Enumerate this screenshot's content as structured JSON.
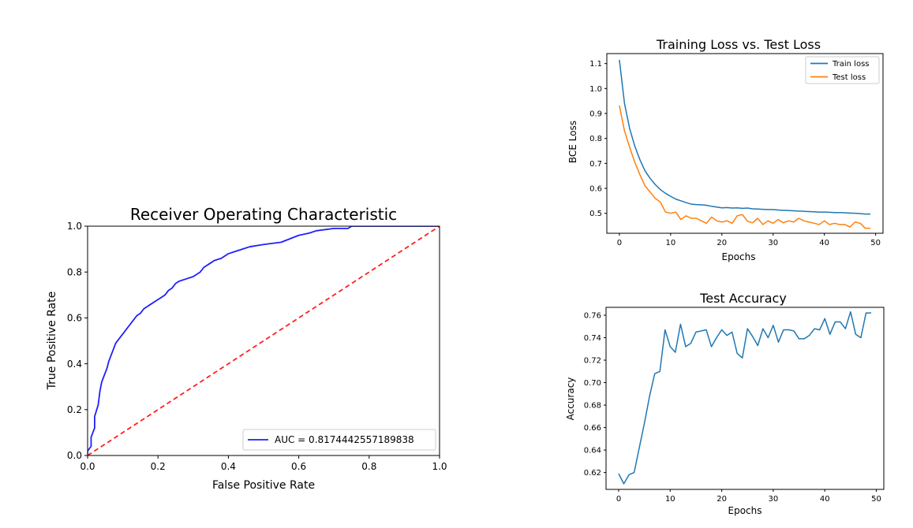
{
  "chart_data": [
    {
      "type": "line",
      "title": "Receiver Operating Characteristic",
      "xlabel": "False Positive Rate",
      "ylabel": "True Positive Rate",
      "xlim": [
        0,
        1
      ],
      "ylim": [
        0,
        1
      ],
      "xticks": [
        "0.0",
        "0.2",
        "0.4",
        "0.6",
        "0.8",
        "1.0"
      ],
      "yticks": [
        "0.0",
        "0.2",
        "0.4",
        "0.6",
        "0.8",
        "1.0"
      ],
      "grid": false,
      "legend_position": "lower-right",
      "series": [
        {
          "name": "AUC = 0.8174442557189838",
          "color": "#1f1fff",
          "style": "solid",
          "x": [
            0.0,
            0.0,
            0.01,
            0.01,
            0.02,
            0.02,
            0.03,
            0.035,
            0.04,
            0.05,
            0.055,
            0.06,
            0.07,
            0.08,
            0.09,
            0.1,
            0.11,
            0.12,
            0.13,
            0.14,
            0.15,
            0.16,
            0.17,
            0.18,
            0.19,
            0.2,
            0.21,
            0.22,
            0.23,
            0.24,
            0.25,
            0.26,
            0.28,
            0.3,
            0.32,
            0.33,
            0.35,
            0.36,
            0.38,
            0.4,
            0.42,
            0.44,
            0.46,
            0.5,
            0.55,
            0.6,
            0.63,
            0.65,
            0.7,
            0.74,
            0.75,
            0.8,
            0.9,
            1.0
          ],
          "y": [
            0.0,
            0.02,
            0.04,
            0.08,
            0.12,
            0.17,
            0.22,
            0.28,
            0.32,
            0.36,
            0.38,
            0.41,
            0.45,
            0.49,
            0.51,
            0.53,
            0.55,
            0.57,
            0.59,
            0.61,
            0.62,
            0.64,
            0.65,
            0.66,
            0.67,
            0.68,
            0.69,
            0.7,
            0.72,
            0.73,
            0.75,
            0.76,
            0.77,
            0.78,
            0.8,
            0.82,
            0.84,
            0.85,
            0.86,
            0.88,
            0.89,
            0.9,
            0.91,
            0.92,
            0.93,
            0.96,
            0.97,
            0.98,
            0.99,
            0.99,
            1.0,
            1.0,
            1.0,
            1.0
          ]
        },
        {
          "name": "",
          "color": "#ff2020",
          "style": "dashed",
          "x": [
            0,
            1
          ],
          "y": [
            0,
            1
          ]
        }
      ]
    },
    {
      "type": "line",
      "title": "Training Loss vs. Test Loss",
      "xlabel": "Epochs",
      "ylabel": "BCE Loss",
      "xlim": [
        -2.45,
        51.45
      ],
      "ylim": [
        0.42,
        1.14
      ],
      "xticks": [
        "0",
        "10",
        "20",
        "30",
        "40",
        "50"
      ],
      "yticks": [
        "0.5",
        "0.6",
        "0.7",
        "0.8",
        "0.9",
        "1.0",
        "1.1"
      ],
      "grid": false,
      "legend_position": "top-right",
      "series": [
        {
          "name": "Train loss",
          "color": "#1f77b4",
          "values": [
            1.115,
            0.94,
            0.84,
            0.77,
            0.715,
            0.67,
            0.64,
            0.615,
            0.595,
            0.58,
            0.568,
            0.557,
            0.55,
            0.543,
            0.537,
            0.535,
            0.534,
            0.532,
            0.528,
            0.525,
            0.522,
            0.523,
            0.521,
            0.522,
            0.52,
            0.521,
            0.518,
            0.517,
            0.516,
            0.515,
            0.515,
            0.513,
            0.512,
            0.511,
            0.51,
            0.509,
            0.508,
            0.507,
            0.506,
            0.505,
            0.505,
            0.504,
            0.503,
            0.503,
            0.502,
            0.501,
            0.5,
            0.499,
            0.497,
            0.497
          ]
        },
        {
          "name": "Test loss",
          "color": "#ff7f0e",
          "values": [
            0.932,
            0.83,
            0.765,
            0.705,
            0.655,
            0.61,
            0.585,
            0.56,
            0.545,
            0.505,
            0.5,
            0.505,
            0.475,
            0.49,
            0.48,
            0.48,
            0.47,
            0.46,
            0.485,
            0.47,
            0.465,
            0.47,
            0.46,
            0.49,
            0.495,
            0.468,
            0.462,
            0.48,
            0.455,
            0.47,
            0.46,
            0.475,
            0.462,
            0.47,
            0.465,
            0.48,
            0.47,
            0.465,
            0.46,
            0.455,
            0.47,
            0.455,
            0.46,
            0.455,
            0.455,
            0.445,
            0.465,
            0.46,
            0.44,
            0.44
          ]
        }
      ]
    },
    {
      "type": "line",
      "title": "Test Accuracy",
      "xlabel": "Epochs",
      "ylabel": "Accuracy",
      "xlim": [
        -2.45,
        51.45
      ],
      "ylim": [
        0.605,
        0.767
      ],
      "xticks": [
        "0",
        "10",
        "20",
        "30",
        "40",
        "50"
      ],
      "yticks": [
        "0.62",
        "0.64",
        "0.66",
        "0.68",
        "0.70",
        "0.72",
        "0.74",
        "0.76"
      ],
      "grid": false,
      "legend_position": "none",
      "series": [
        {
          "name": "",
          "color": "#1f77b4",
          "values": [
            0.619,
            0.61,
            0.618,
            0.62,
            0.642,
            0.664,
            0.688,
            0.708,
            0.71,
            0.747,
            0.732,
            0.727,
            0.752,
            0.732,
            0.735,
            0.745,
            0.746,
            0.747,
            0.732,
            0.74,
            0.747,
            0.742,
            0.745,
            0.726,
            0.722,
            0.748,
            0.741,
            0.733,
            0.748,
            0.74,
            0.751,
            0.736,
            0.747,
            0.747,
            0.746,
            0.739,
            0.739,
            0.742,
            0.748,
            0.747,
            0.757,
            0.743,
            0.754,
            0.754,
            0.748,
            0.763,
            0.743,
            0.74,
            0.762,
            0.762
          ]
        }
      ]
    }
  ]
}
